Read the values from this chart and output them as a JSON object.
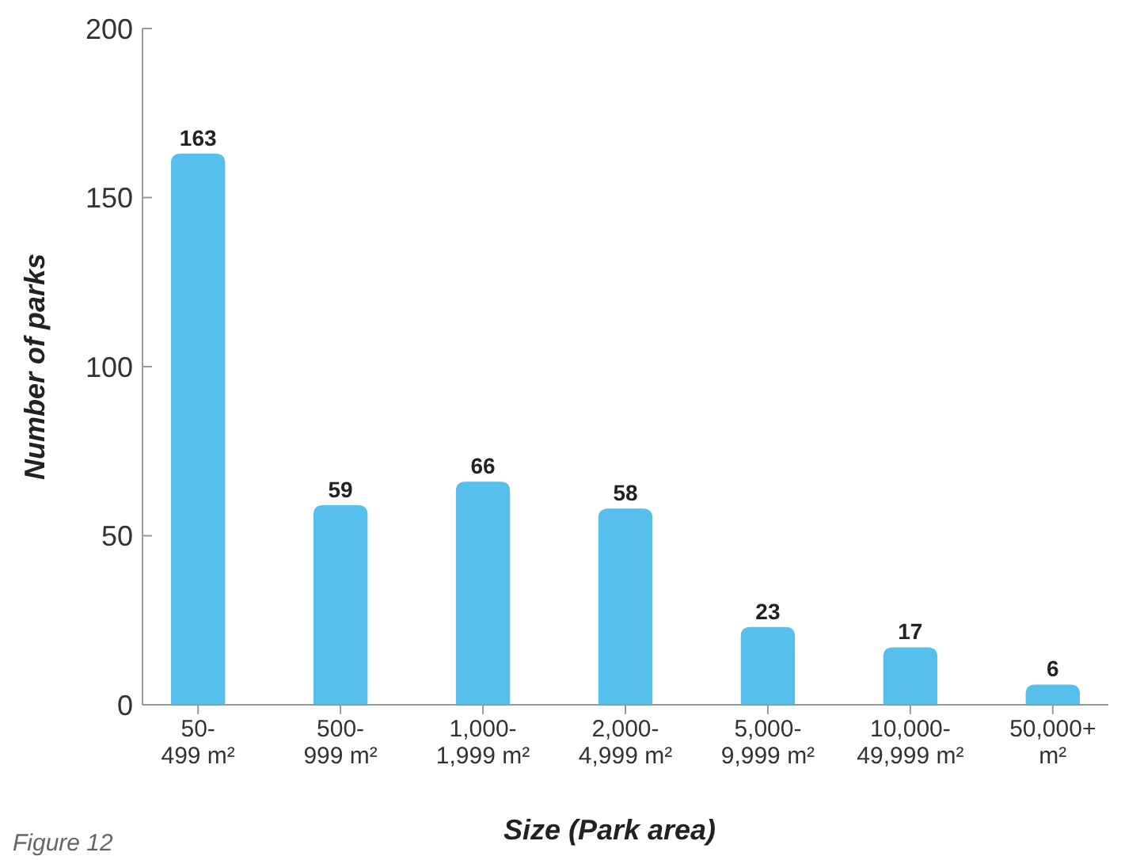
{
  "chart_data": {
    "type": "bar",
    "xlabel": "Size (Park area)",
    "ylabel": "Number of parks",
    "categories": [
      "50-\n499 m²",
      "500-\n999 m²",
      "1,000-\n1,999 m²",
      "2,000-\n4,999 m²",
      "5,000-\n9,999 m²",
      "10,000-\n49,999 m²",
      "50,000+\nm²"
    ],
    "values": [
      163,
      59,
      66,
      58,
      23,
      17,
      6
    ],
    "color": "#56bfec",
    "data_labels": true,
    "ylim": [
      0,
      200
    ],
    "yticks": [
      0,
      50,
      100,
      150,
      200
    ],
    "grid": false,
    "annotations": [
      "Figure 12"
    ]
  }
}
